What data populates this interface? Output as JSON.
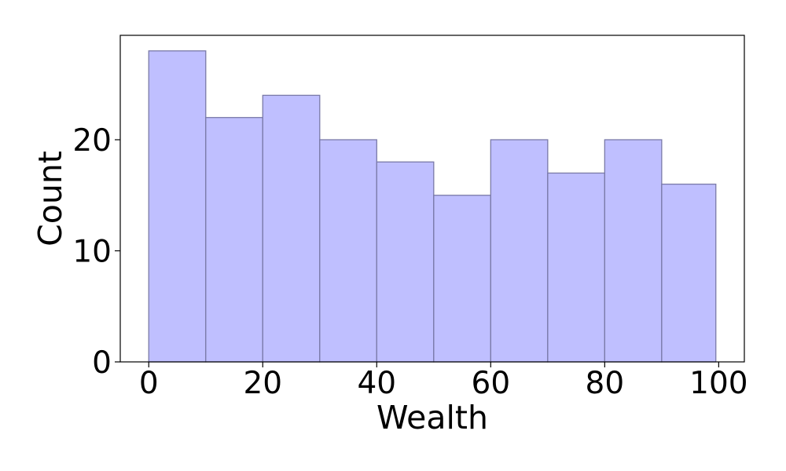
{
  "chart_data": {
    "type": "bar",
    "bins": [
      {
        "x0": 0,
        "x1": 10,
        "count": 28
      },
      {
        "x0": 10,
        "x1": 20,
        "count": 22
      },
      {
        "x0": 20,
        "x1": 30,
        "count": 24
      },
      {
        "x0": 30,
        "x1": 40,
        "count": 20
      },
      {
        "x0": 40,
        "x1": 50,
        "count": 18
      },
      {
        "x0": 50,
        "x1": 60,
        "count": 15
      },
      {
        "x0": 60,
        "x1": 70,
        "count": 20
      },
      {
        "x0": 70,
        "x1": 80,
        "count": 17
      },
      {
        "x0": 80,
        "x1": 90,
        "count": 20
      },
      {
        "x0": 90,
        "x1": 99.5,
        "count": 16
      }
    ],
    "xlabel": "Wealth",
    "ylabel": "Count",
    "xlim": [
      -5,
      104.5
    ],
    "ylim": [
      0,
      29.4
    ],
    "xticks": [
      0,
      20,
      40,
      60,
      80,
      100
    ],
    "yticks": [
      0,
      10,
      20
    ],
    "xtick_labels": [
      "0",
      "20",
      "40",
      "60",
      "80",
      "100"
    ],
    "ytick_labels": [
      "0",
      "10",
      "20"
    ],
    "grid": false,
    "colors": {
      "bar_fill": "#bfbfff",
      "bar_edge": "#7a7aa8",
      "axis": "#000000"
    }
  }
}
